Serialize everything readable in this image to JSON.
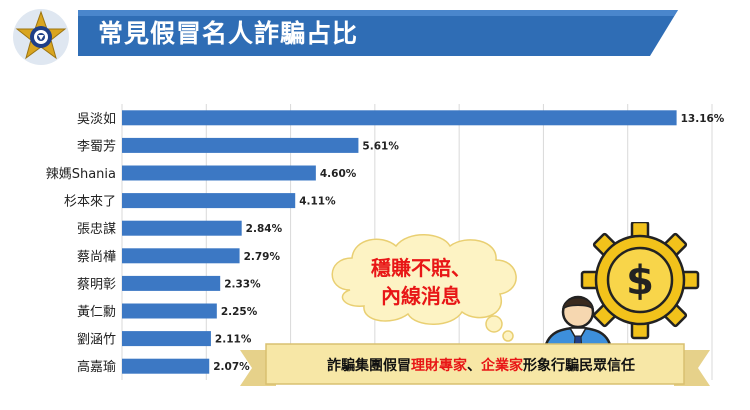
{
  "header": {
    "title": "常見假冒名人詐騙占比"
  },
  "chart_data": {
    "type": "bar",
    "orientation": "horizontal",
    "categories": [
      "吳淡如",
      "李蜀芳",
      "辣媽Shania",
      "杉本來了",
      "張忠謀",
      "蔡尚樺",
      "蔡明彰",
      "黃仁勳",
      "劉涵竹",
      "高嘉瑜"
    ],
    "values": [
      13.16,
      5.61,
      4.6,
      4.11,
      2.84,
      2.79,
      2.33,
      2.25,
      2.11,
      2.07
    ],
    "value_labels": [
      "13.16%",
      "5.61%",
      "4.60%",
      "4.11%",
      "2.84%",
      "2.79%",
      "2.33%",
      "2.25%",
      "2.11%",
      "2.07%"
    ],
    "xlim": [
      0,
      14
    ],
    "grid": true,
    "bar_color": "#3c78c4"
  },
  "callout": {
    "line1": "穩賺不賠、",
    "line2": "內線消息"
  },
  "footer": {
    "text_a": "詐騙集團假冒",
    "text_b": "理財專家",
    "text_c": "、",
    "text_d": "企業家",
    "text_e": "形象行騙民眾信任"
  },
  "colors": {
    "banner": "#2f6db5",
    "accent_red": "#e81616",
    "ribbon": "#f7e7a6",
    "gear": "#f2c21b"
  }
}
